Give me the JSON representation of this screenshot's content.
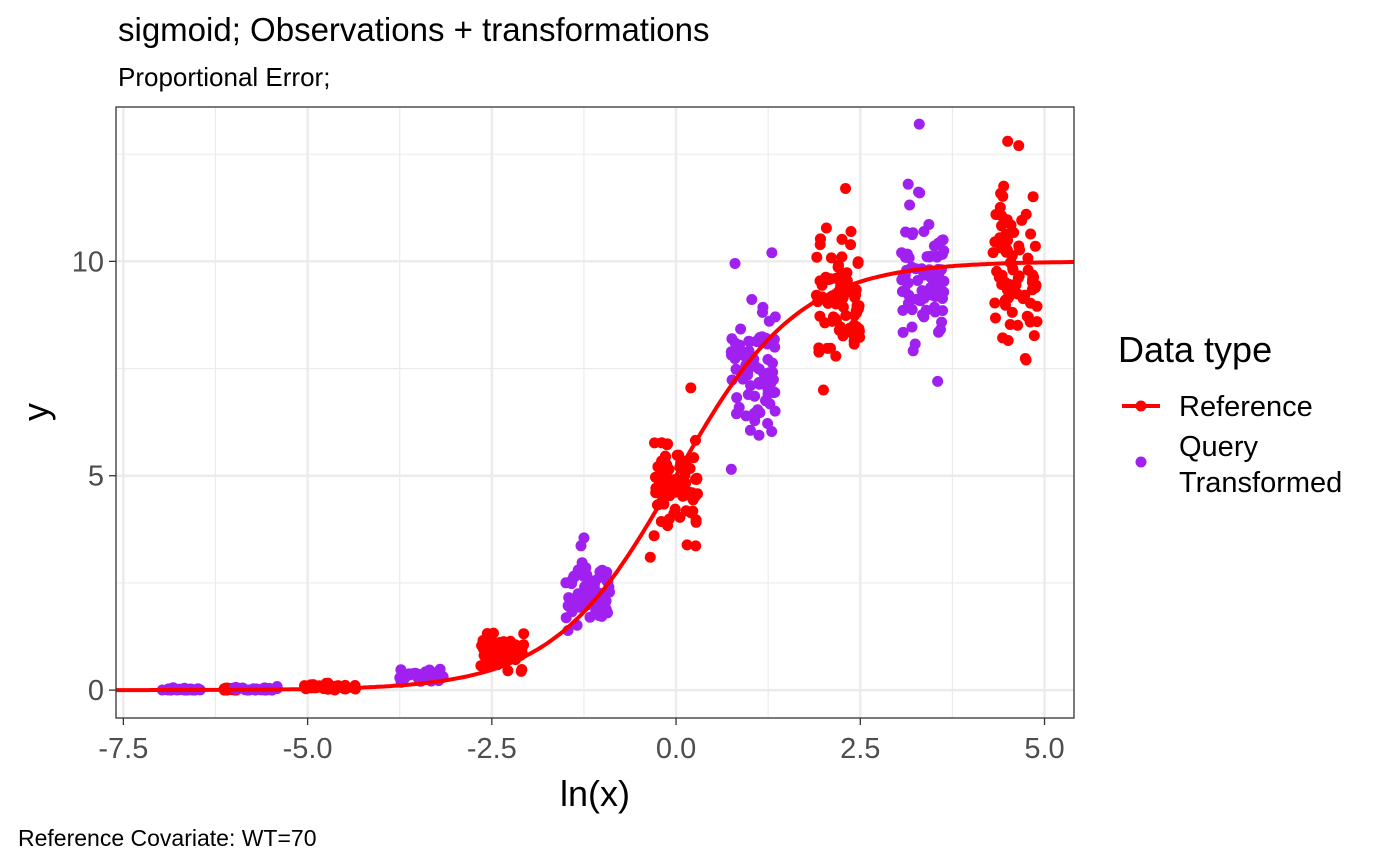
{
  "title": "sigmoid; Observations + transformations",
  "subtitle": "Proportional Error;",
  "caption": "Reference Covariate: WT=70",
  "legend": {
    "title": "Data type",
    "entries": [
      {
        "label": "Reference",
        "color": "#ff0000",
        "shape": "line-point"
      },
      {
        "label_lines": [
          "Query",
          "Transformed"
        ],
        "color": "#a020f0",
        "shape": "point"
      }
    ]
  },
  "colors": {
    "reference": "#ff0000",
    "query": "#a020f0",
    "panel_border": "#333333",
    "grid": "#ebebeb"
  },
  "chart_data": {
    "type": "scatter",
    "xlabel": "ln(x)",
    "ylabel": "y",
    "xlim": [
      -7.6,
      5.4
    ],
    "ylim": [
      -0.65,
      13.6
    ],
    "x_ticks": [
      -7.5,
      -5.0,
      -2.5,
      0.0,
      2.5,
      5.0
    ],
    "x_tick_labels": [
      "-7.5",
      "-5.0",
      "-2.5",
      "0.0",
      "2.5",
      "5.0"
    ],
    "y_ticks": [
      0,
      5,
      10
    ],
    "y_tick_labels": [
      "0",
      "5",
      "10"
    ],
    "grid": true,
    "legend_position": "right",
    "curve": {
      "name": "Reference",
      "model": "sigmoid",
      "emax": 10,
      "ec50_ln": 0.0,
      "hill": 1.2
    },
    "groups": [
      {
        "series": "Query Transformed",
        "x_center": -6.7,
        "x_spread": 0.35,
        "y_center": 0.0,
        "y_spread": 0.03,
        "n": 30
      },
      {
        "series": "Reference",
        "x_center": -6.05,
        "x_spread": 0.1,
        "y_center": 0.02,
        "y_spread": 0.02,
        "n": 20
      },
      {
        "series": "Query Transformed",
        "x_center": -5.7,
        "x_spread": 0.3,
        "y_center": 0.03,
        "y_spread": 0.03,
        "n": 30
      },
      {
        "series": "Reference",
        "x_center": -4.7,
        "x_spread": 0.35,
        "y_center": 0.07,
        "y_spread": 0.05,
        "n": 40
      },
      {
        "series": "Query Transformed",
        "x_center": -3.45,
        "x_spread": 0.3,
        "y_center": 0.35,
        "y_spread": 0.1,
        "n": 40
      },
      {
        "series": "Reference",
        "x_center": -2.35,
        "x_spread": 0.3,
        "y_center": 0.9,
        "y_spread": 0.25,
        "n": 60
      },
      {
        "series": "Query Transformed",
        "x_center": -1.2,
        "x_spread": 0.3,
        "y_center": 2.3,
        "y_spread": 0.5,
        "n": 70
      },
      {
        "series": "Reference",
        "x_center": 0.0,
        "x_spread": 0.3,
        "y_center": 4.8,
        "y_spread": 0.7,
        "n": 80
      },
      {
        "series": "Query Transformed",
        "x_center": 1.05,
        "x_spread": 0.3,
        "y_center": 7.5,
        "y_spread": 0.9,
        "n": 80
      },
      {
        "series": "Reference",
        "x_center": 2.2,
        "x_spread": 0.3,
        "y_center": 9.0,
        "y_spread": 0.9,
        "n": 80
      },
      {
        "series": "Query Transformed",
        "x_center": 3.35,
        "x_spread": 0.3,
        "y_center": 9.6,
        "y_spread": 1.0,
        "n": 80
      },
      {
        "series": "Reference",
        "x_center": 4.6,
        "x_spread": 0.3,
        "y_center": 9.8,
        "y_spread": 1.1,
        "n": 80
      }
    ],
    "outliers": [
      {
        "series": "Query Transformed",
        "x": 3.3,
        "y": 13.2
      },
      {
        "series": "Reference",
        "x": 4.5,
        "y": 12.8
      },
      {
        "series": "Reference",
        "x": 4.65,
        "y": 12.7
      },
      {
        "series": "Query Transformed",
        "x": 0.8,
        "y": 9.95
      },
      {
        "series": "Query Transformed",
        "x": 1.3,
        "y": 10.2
      },
      {
        "series": "Query Transformed",
        "x": 0.75,
        "y": 5.15
      },
      {
        "series": "Reference",
        "x": -0.35,
        "y": 3.1
      },
      {
        "series": "Reference",
        "x": 2.3,
        "y": 11.7
      },
      {
        "series": "Reference",
        "x": 2.0,
        "y": 7.0
      },
      {
        "series": "Query Transformed",
        "x": 3.15,
        "y": 11.8
      },
      {
        "series": "Query Transformed",
        "x": 3.55,
        "y": 7.2
      },
      {
        "series": "Reference",
        "x": 4.75,
        "y": 7.7
      },
      {
        "series": "Reference",
        "x": 0.2,
        "y": 7.05
      },
      {
        "series": "Query Transformed",
        "x": -1.25,
        "y": 3.55
      }
    ]
  }
}
